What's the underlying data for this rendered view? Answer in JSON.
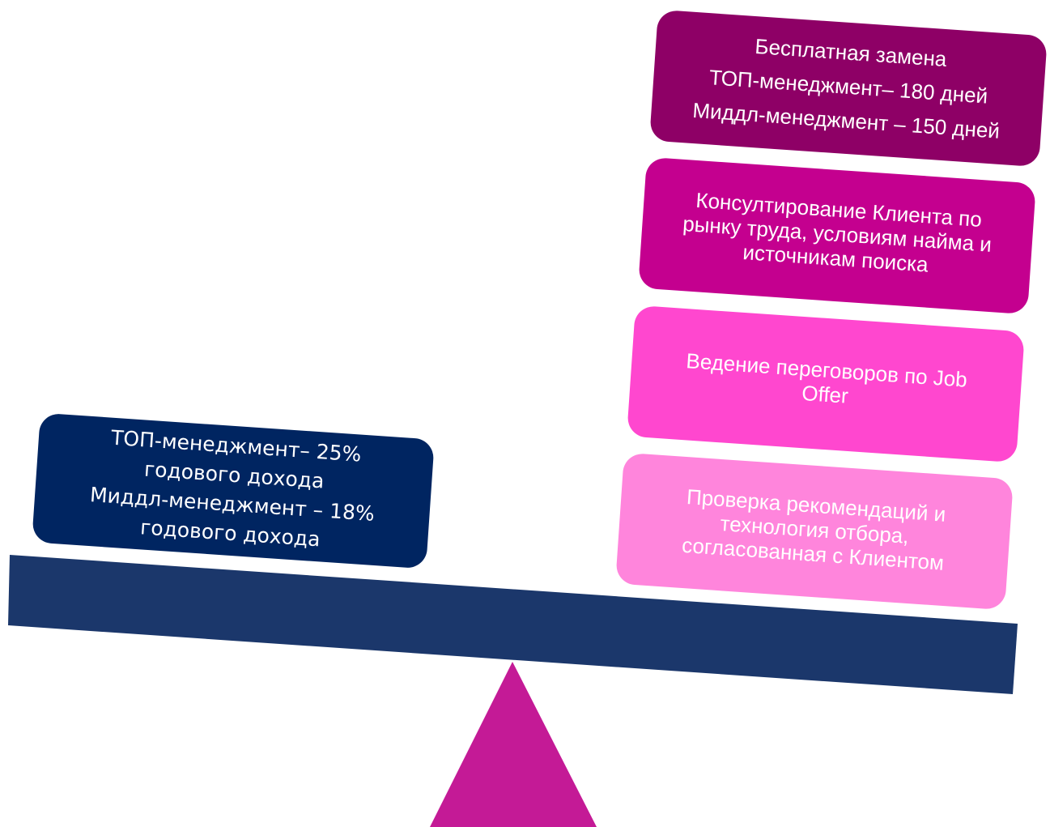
{
  "left_box": {
    "lines": [
      "ТОП-менеджмент– 25%",
      "годового дохода",
      "Миддл-менеджмент – 18%",
      "годового дохода"
    ]
  },
  "right_boxes": [
    {
      "lines": [
        "Бесплатная замена",
        "ТОП-менеджмент– 180 дней",
        "Миддл-менеджмент – 150 дней"
      ]
    },
    {
      "lines": [
        "Консултирование Клиента по",
        "рынку труда, условиям найма и",
        "источникам поиска"
      ]
    },
    {
      "lines": [
        "Ведение переговоров по Job",
        "Offer"
      ]
    },
    {
      "lines": [
        "Проверка рекомендаций и",
        "технология отбора,",
        "согласованная с Клиентом"
      ]
    }
  ]
}
